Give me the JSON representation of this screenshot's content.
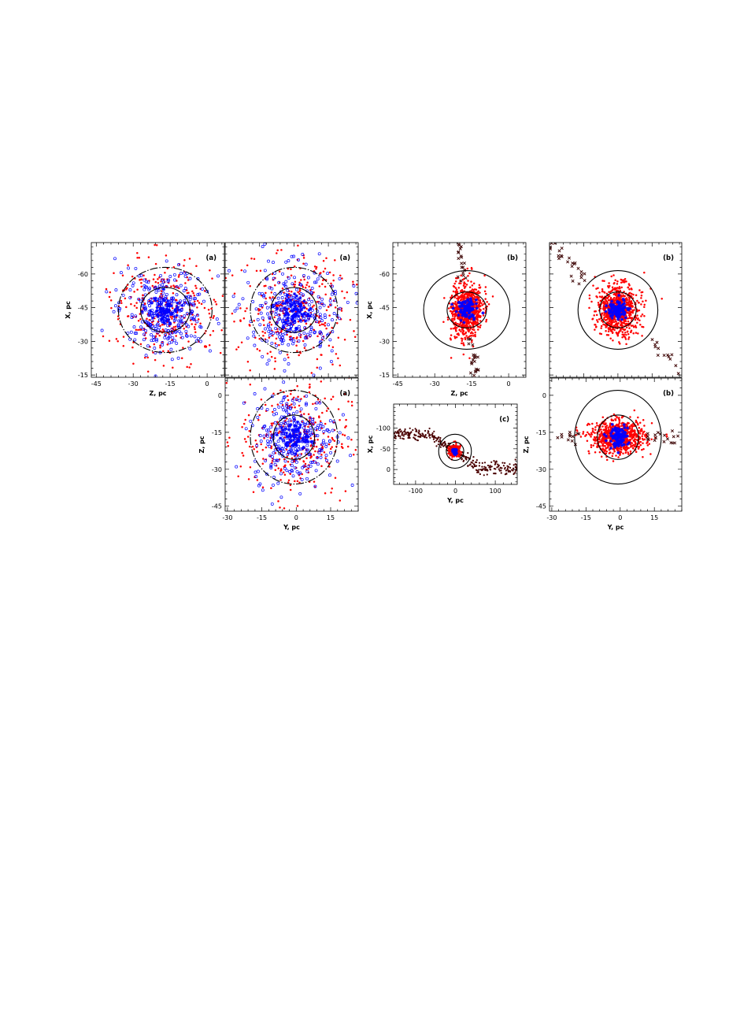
{
  "colors": {
    "member_star": "#ff0000",
    "open_circle_star": "#0000ff",
    "centre_star": "#0000ff",
    "escaper": "#3a0000",
    "stream_star": "#4a0000",
    "circles": "#000000"
  },
  "chart_data": [
    {
      "type": "scatter",
      "panel": "(a)",
      "xlabel": "Z, pc",
      "ylabel": "X, pc",
      "xlim": [
        -47,
        7
      ],
      "ylim": [
        -74,
        -14
      ],
      "y_inverted": true,
      "xticks": [
        -45,
        -30,
        -15,
        0
      ],
      "yticks": [
        -60,
        -45,
        -30,
        -15
      ],
      "xtick_labels": [
        "-45",
        "-30",
        "-15",
        "0"
      ],
      "ytick_labels": [
        "-60",
        "-45",
        "-30",
        "-15"
      ],
      "center": [
        -17,
        -44
      ],
      "circles": [
        {
          "radius": 10,
          "style": "solid"
        },
        {
          "radius": 19,
          "style": "dash-dot"
        }
      ],
      "series": [
        {
          "marker": "filled-dot",
          "color": "#ff0000",
          "count": 320,
          "spread": 11
        },
        {
          "marker": "open-circle",
          "color": "#0000ff",
          "count": 300,
          "spread": 9
        },
        {
          "marker": "star",
          "color": "#0000ff",
          "count": 70,
          "spread": 3.2
        }
      ]
    },
    {
      "type": "scatter",
      "panel": "(a)",
      "xlabel": "",
      "ylabel": "",
      "xlim": [
        -30,
        28
      ],
      "ylim": [
        -74,
        -14
      ],
      "y_inverted": true,
      "xticks": [
        -30,
        -15,
        0,
        15
      ],
      "yticks": [
        -60,
        -45,
        -30,
        -15
      ],
      "xtick_labels": [],
      "ytick_labels": [],
      "center": [
        0,
        -44
      ],
      "circles": [
        {
          "radius": 10,
          "style": "solid"
        },
        {
          "radius": 19,
          "style": "dash-dot"
        }
      ],
      "series": [
        {
          "marker": "filled-dot",
          "color": "#ff0000",
          "count": 340,
          "spread": 12
        },
        {
          "marker": "open-circle",
          "color": "#0000ff",
          "count": 300,
          "spread": 10
        },
        {
          "marker": "star",
          "color": "#0000ff",
          "count": 70,
          "spread": 3.2
        }
      ]
    },
    {
      "type": "scatter",
      "panel": "(a)",
      "xlabel": "Y, pc",
      "ylabel": "Z, pc",
      "xlim": [
        -31,
        27
      ],
      "ylim": [
        7,
        -47
      ],
      "y_inverted": false,
      "xticks": [
        -30,
        -15,
        0,
        15
      ],
      "yticks": [
        0,
        -15,
        -30,
        -45
      ],
      "xtick_labels": [
        "-30",
        "-15",
        "0",
        "15"
      ],
      "ytick_labels": [
        "0",
        "-15",
        "-30",
        "-45"
      ],
      "center": [
        -1,
        -17
      ],
      "circles": [
        {
          "radius": 9,
          "style": "solid"
        },
        {
          "radius": 19,
          "style": "dash-dot"
        }
      ],
      "series": [
        {
          "marker": "filled-dot",
          "color": "#ff0000",
          "count": 330,
          "spread": 12
        },
        {
          "marker": "open-circle",
          "color": "#0000ff",
          "count": 300,
          "spread": 9
        },
        {
          "marker": "star",
          "color": "#0000ff",
          "count": 70,
          "spread": 3
        }
      ]
    },
    {
      "type": "scatter",
      "panel": "(b)",
      "xlabel": "Z, pc",
      "ylabel": "X, pc",
      "xlim": [
        -47,
        7
      ],
      "ylim": [
        -74,
        -14
      ],
      "y_inverted": true,
      "xticks": [
        -45,
        -30,
        -15,
        0
      ],
      "yticks": [
        -60,
        -45,
        -30,
        -15
      ],
      "xtick_labels": [
        "-45",
        "-30",
        "-15",
        "0"
      ],
      "ytick_labels": [
        "-60",
        "-45",
        "-30",
        "-15"
      ],
      "center": [
        -17,
        -44
      ],
      "circles": [
        {
          "radius": 8,
          "style": "solid"
        },
        {
          "radius": 17.5,
          "style": "solid"
        }
      ],
      "series": [
        {
          "marker": "filled-dot",
          "color": "#ff0000",
          "count": 800,
          "spread_x": 3.2,
          "spread_y": 6
        },
        {
          "marker": "cross",
          "color": "#3a0000",
          "count": 40,
          "note": "escaper tail along X"
        },
        {
          "marker": "star",
          "color": "#0000ff",
          "count": 90,
          "spread": 2.2
        }
      ]
    },
    {
      "type": "scatter",
      "panel": "(b)",
      "xlabel": "",
      "ylabel": "",
      "xlim": [
        -30,
        28
      ],
      "ylim": [
        -74,
        -14
      ],
      "y_inverted": true,
      "xticks": [
        -30,
        -15,
        0,
        15
      ],
      "yticks": [
        -60,
        -45,
        -30,
        -15
      ],
      "xtick_labels": [],
      "ytick_labels": [],
      "center": [
        0,
        -44
      ],
      "circles": [
        {
          "radius": 8,
          "style": "solid"
        },
        {
          "radius": 17.5,
          "style": "solid"
        }
      ],
      "series": [
        {
          "marker": "filled-dot",
          "color": "#ff0000",
          "count": 800,
          "spread_x": 4.5,
          "spread_y": 5.5
        },
        {
          "marker": "cross",
          "color": "#3a0000",
          "count": 40,
          "note": "escaper tail diagonal"
        },
        {
          "marker": "star",
          "color": "#0000ff",
          "count": 90,
          "spread": 2.2
        }
      ]
    },
    {
      "type": "scatter",
      "panel": "(c)",
      "xlabel": "Y, pc",
      "ylabel": "X, pc",
      "xlim": [
        -155,
        155
      ],
      "ylim": [
        -158,
        36
      ],
      "y_inverted": true,
      "xticks": [
        -100,
        0,
        100
      ],
      "yticks": [
        -100,
        -50,
        0
      ],
      "xtick_labels": [
        "-100",
        "0",
        "100"
      ],
      "ytick_labels": [
        "-100",
        "-50",
        "0"
      ],
      "center": [
        -1,
        -44
      ],
      "circles": [
        {
          "radius": 22,
          "style": "solid"
        },
        {
          "radius": 41,
          "style": "solid"
        }
      ],
      "series": [
        {
          "marker": "filled-dot",
          "color": "#4a0000",
          "count": 380,
          "note": "tidal stream"
        },
        {
          "marker": "filled-dot",
          "color": "#ff0000",
          "count": 200,
          "spread": 7
        },
        {
          "marker": "star",
          "color": "#0000ff",
          "count": 40,
          "spread": 3
        }
      ]
    },
    {
      "type": "scatter",
      "panel": "(b)",
      "xlabel": "Y, pc",
      "ylabel": "Z, pc",
      "xlim": [
        -31,
        27
      ],
      "ylim": [
        7,
        -47
      ],
      "y_inverted": false,
      "xticks": [
        -30,
        -15,
        0,
        15
      ],
      "yticks": [
        0,
        -15,
        -30,
        -45
      ],
      "xtick_labels": [
        "-30",
        "-15",
        "0",
        "15"
      ],
      "ytick_labels": [
        "0",
        "-15",
        "-30",
        "-45"
      ],
      "center": [
        -1,
        -17
      ],
      "circles": [
        {
          "radius": 9,
          "style": "solid"
        },
        {
          "radius": 19,
          "style": "solid"
        }
      ],
      "series": [
        {
          "marker": "filled-dot",
          "color": "#ff0000",
          "count": 800,
          "spread_x": 6,
          "spread_y": 3.3
        },
        {
          "marker": "cross",
          "color": "#3a0000",
          "count": 30,
          "note": "escapers along Y"
        },
        {
          "marker": "star",
          "color": "#0000ff",
          "count": 90,
          "spread": 2.2
        }
      ]
    }
  ]
}
